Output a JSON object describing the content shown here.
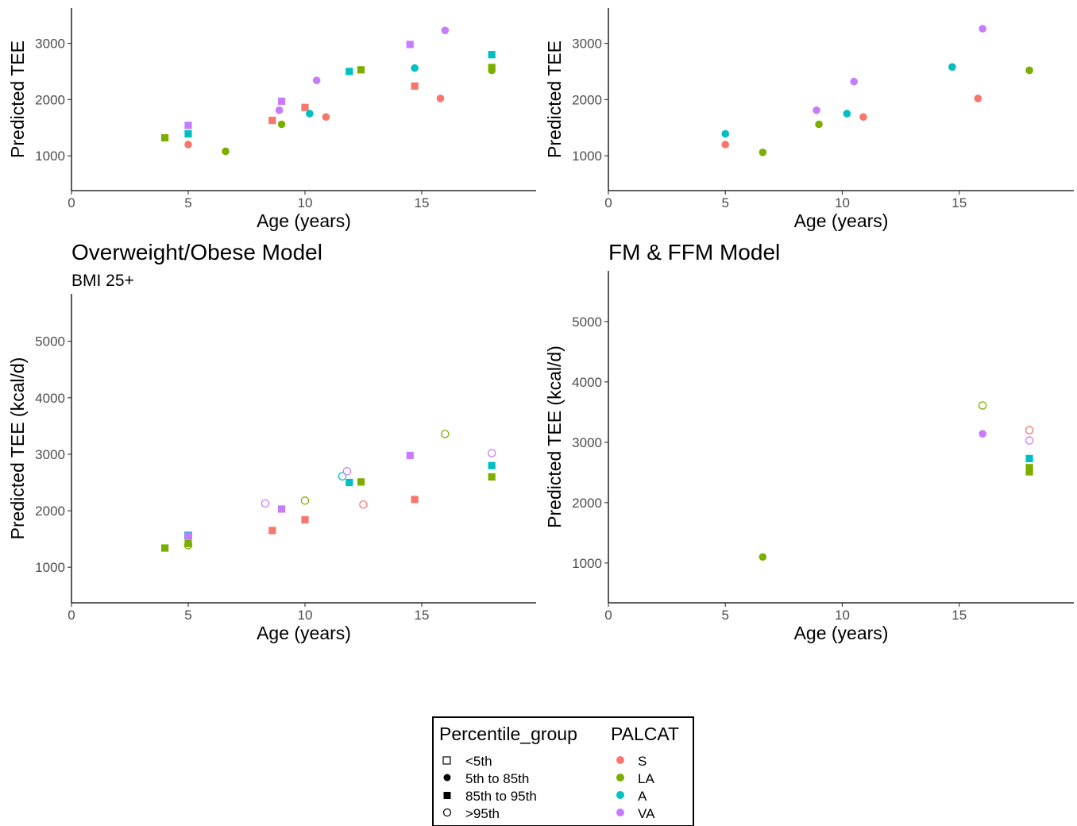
{
  "colors": {
    "S": "#F8766D",
    "LA": "#7CAE00",
    "A": "#00BFC4",
    "VA": "#C77CFF"
  },
  "chart_data": [
    {
      "type": "scatter",
      "title": "",
      "subtitle": "",
      "xlabel": "Age (years)",
      "ylabel": "Predicted TEE",
      "xlim": [
        0,
        19.9
      ],
      "ylim": [
        380,
        3630
      ],
      "xticks": [
        0,
        5,
        10,
        15
      ],
      "yticks": [
        1000,
        2000,
        3000
      ],
      "points": [
        {
          "x": 4.0,
          "y": 1320,
          "group": "85th to 95th",
          "palcat": "LA"
        },
        {
          "x": 5.0,
          "y": 1540,
          "group": "85th to 95th",
          "palcat": "VA"
        },
        {
          "x": 5.0,
          "y": 1390,
          "group": "85th to 95th",
          "palcat": "A"
        },
        {
          "x": 5.0,
          "y": 1200,
          "group": "5th to 85th",
          "palcat": "S"
        },
        {
          "x": 6.6,
          "y": 1080,
          "group": "5th to 85th",
          "palcat": "LA"
        },
        {
          "x": 8.6,
          "y": 1630,
          "group": "85th to 95th",
          "palcat": "S"
        },
        {
          "x": 8.9,
          "y": 1810,
          "group": "5th to 85th",
          "palcat": "VA"
        },
        {
          "x": 9.0,
          "y": 1970,
          "group": "85th to 95th",
          "palcat": "VA"
        },
        {
          "x": 9.0,
          "y": 1560,
          "group": "5th to 85th",
          "palcat": "LA"
        },
        {
          "x": 10.0,
          "y": 1860,
          "group": "85th to 95th",
          "palcat": "S"
        },
        {
          "x": 10.2,
          "y": 1750,
          "group": "5th to 85th",
          "palcat": "A"
        },
        {
          "x": 10.5,
          "y": 2340,
          "group": "5th to 85th",
          "palcat": "VA"
        },
        {
          "x": 10.9,
          "y": 1690,
          "group": "5th to 85th",
          "palcat": "S"
        },
        {
          "x": 11.9,
          "y": 2500,
          "group": "85th to 95th",
          "palcat": "A"
        },
        {
          "x": 12.4,
          "y": 2530,
          "group": "85th to 95th",
          "palcat": "LA"
        },
        {
          "x": 14.5,
          "y": 2980,
          "group": "85th to 95th",
          "palcat": "VA"
        },
        {
          "x": 14.7,
          "y": 2560,
          "group": "5th to 85th",
          "palcat": "A"
        },
        {
          "x": 14.7,
          "y": 2240,
          "group": "85th to 95th",
          "palcat": "S"
        },
        {
          "x": 15.8,
          "y": 2020,
          "group": "5th to 85th",
          "palcat": "S"
        },
        {
          "x": 16.0,
          "y": 3230,
          "group": "5th to 85th",
          "palcat": "VA"
        },
        {
          "x": 18.0,
          "y": 2800,
          "group": "85th to 95th",
          "palcat": "A"
        },
        {
          "x": 18.0,
          "y": 2570,
          "group": "85th to 95th",
          "palcat": "LA"
        },
        {
          "x": 18.0,
          "y": 2520,
          "group": "5th to 85th",
          "palcat": "LA"
        }
      ]
    },
    {
      "type": "scatter",
      "title": "",
      "subtitle": "",
      "xlabel": "Age (years)",
      "ylabel": "Predicted TEE",
      "xlim": [
        0,
        19.9
      ],
      "ylim": [
        380,
        3630
      ],
      "xticks": [
        0,
        5,
        10,
        15
      ],
      "yticks": [
        1000,
        2000,
        3000
      ],
      "points": [
        {
          "x": 5.0,
          "y": 1390,
          "group": "5th to 85th",
          "palcat": "A"
        },
        {
          "x": 5.0,
          "y": 1200,
          "group": "5th to 85th",
          "palcat": "S"
        },
        {
          "x": 6.6,
          "y": 1060,
          "group": "5th to 85th",
          "palcat": "LA"
        },
        {
          "x": 8.9,
          "y": 1810,
          "group": "5th to 85th",
          "palcat": "VA"
        },
        {
          "x": 9.0,
          "y": 1560,
          "group": "5th to 85th",
          "palcat": "LA"
        },
        {
          "x": 10.2,
          "y": 1750,
          "group": "5th to 85th",
          "palcat": "A"
        },
        {
          "x": 10.5,
          "y": 2320,
          "group": "5th to 85th",
          "palcat": "VA"
        },
        {
          "x": 10.9,
          "y": 1690,
          "group": "5th to 85th",
          "palcat": "S"
        },
        {
          "x": 14.7,
          "y": 2580,
          "group": "5th to 85th",
          "palcat": "A"
        },
        {
          "x": 15.8,
          "y": 2020,
          "group": "5th to 85th",
          "palcat": "S"
        },
        {
          "x": 16.0,
          "y": 3260,
          "group": "5th to 85th",
          "palcat": "VA"
        },
        {
          "x": 18.0,
          "y": 2520,
          "group": "5th to 85th",
          "palcat": "LA"
        }
      ]
    },
    {
      "type": "scatter",
      "title": "Overweight/Obese Model",
      "subtitle": "BMI 25+",
      "xlabel": "Age (years)",
      "ylabel": "Predicted TEE (kcal/d)",
      "xlim": [
        0,
        19.9
      ],
      "ylim": [
        370,
        5840
      ],
      "xticks": [
        0,
        5,
        10,
        15
      ],
      "yticks": [
        1000,
        2000,
        3000,
        4000,
        5000
      ],
      "points": [
        {
          "x": 4.0,
          "y": 1340,
          "group": "85th to 95th",
          "palcat": "LA"
        },
        {
          "x": 5.0,
          "y": 1560,
          "group": "<5th",
          "palcat": "A"
        },
        {
          "x": 5.0,
          "y": 1550,
          "group": "85th to 95th",
          "palcat": "VA"
        },
        {
          "x": 5.0,
          "y": 1420,
          "group": "85th to 95th",
          "palcat": "LA"
        },
        {
          "x": 5.0,
          "y": 1390,
          "group": ">95th",
          "palcat": "LA"
        },
        {
          "x": 8.3,
          "y": 2130,
          "group": ">95th",
          "palcat": "VA"
        },
        {
          "x": 8.6,
          "y": 1650,
          "group": "85th to 95th",
          "palcat": "S"
        },
        {
          "x": 9.0,
          "y": 2030,
          "group": "85th to 95th",
          "palcat": "VA"
        },
        {
          "x": 10.0,
          "y": 2180,
          "group": ">95th",
          "palcat": "LA"
        },
        {
          "x": 10.0,
          "y": 1840,
          "group": "85th to 95th",
          "palcat": "S"
        },
        {
          "x": 11.6,
          "y": 2610,
          "group": ">95th",
          "palcat": "A"
        },
        {
          "x": 11.8,
          "y": 2700,
          "group": ">95th",
          "palcat": "VA"
        },
        {
          "x": 11.9,
          "y": 2500,
          "group": "85th to 95th",
          "palcat": "A"
        },
        {
          "x": 12.4,
          "y": 2510,
          "group": "85th to 95th",
          "palcat": "LA"
        },
        {
          "x": 12.5,
          "y": 2110,
          "group": ">95th",
          "palcat": "S"
        },
        {
          "x": 14.5,
          "y": 2980,
          "group": "85th to 95th",
          "palcat": "VA"
        },
        {
          "x": 14.7,
          "y": 2200,
          "group": "85th to 95th",
          "palcat": "S"
        },
        {
          "x": 16.0,
          "y": 3360,
          "group": ">95th",
          "palcat": "LA"
        },
        {
          "x": 18.0,
          "y": 3020,
          "group": ">95th",
          "palcat": "VA"
        },
        {
          "x": 18.0,
          "y": 2800,
          "group": "85th to 95th",
          "palcat": "A"
        },
        {
          "x": 18.0,
          "y": 2600,
          "group": "85th to 95th",
          "palcat": "LA"
        }
      ]
    },
    {
      "type": "scatter",
      "title": "FM & FFM Model",
      "subtitle": "",
      "xlabel": "Age (years)",
      "ylabel": "Predicted TEE (kcal/d)",
      "xlim": [
        0,
        19.9
      ],
      "ylim": [
        340,
        5840
      ],
      "xticks": [
        0,
        5,
        10,
        15
      ],
      "yticks": [
        1000,
        2000,
        3000,
        4000,
        5000
      ],
      "points": [
        {
          "x": 6.6,
          "y": 1100,
          "group": "5th to 85th",
          "palcat": "LA"
        },
        {
          "x": 16.0,
          "y": 3610,
          "group": ">95th",
          "palcat": "LA"
        },
        {
          "x": 16.0,
          "y": 3140,
          "group": "5th to 85th",
          "palcat": "VA"
        },
        {
          "x": 18.0,
          "y": 3200,
          "group": ">95th",
          "palcat": "S"
        },
        {
          "x": 18.0,
          "y": 3030,
          "group": ">95th",
          "palcat": "VA"
        },
        {
          "x": 18.0,
          "y": 2730,
          "group": "85th to 95th",
          "palcat": "A"
        },
        {
          "x": 18.0,
          "y": 2580,
          "group": "85th to 95th",
          "palcat": "LA"
        },
        {
          "x": 18.0,
          "y": 2510,
          "group": "85th to 95th",
          "palcat": "LA"
        }
      ]
    }
  ],
  "legend": {
    "shape_title": "Percentile_group",
    "shape_items": [
      {
        "label": "<5th",
        "shape": "open-square"
      },
      {
        "label": "5th to 85th",
        "shape": "filled-circle"
      },
      {
        "label": "85th to 95th",
        "shape": "filled-square"
      },
      {
        "label": ">95th",
        "shape": "open-circle"
      }
    ],
    "color_title": "PALCAT",
    "color_items": [
      {
        "label": "S",
        "key": "S"
      },
      {
        "label": "LA",
        "key": "LA"
      },
      {
        "label": "A",
        "key": "A"
      },
      {
        "label": "VA",
        "key": "VA"
      }
    ]
  }
}
